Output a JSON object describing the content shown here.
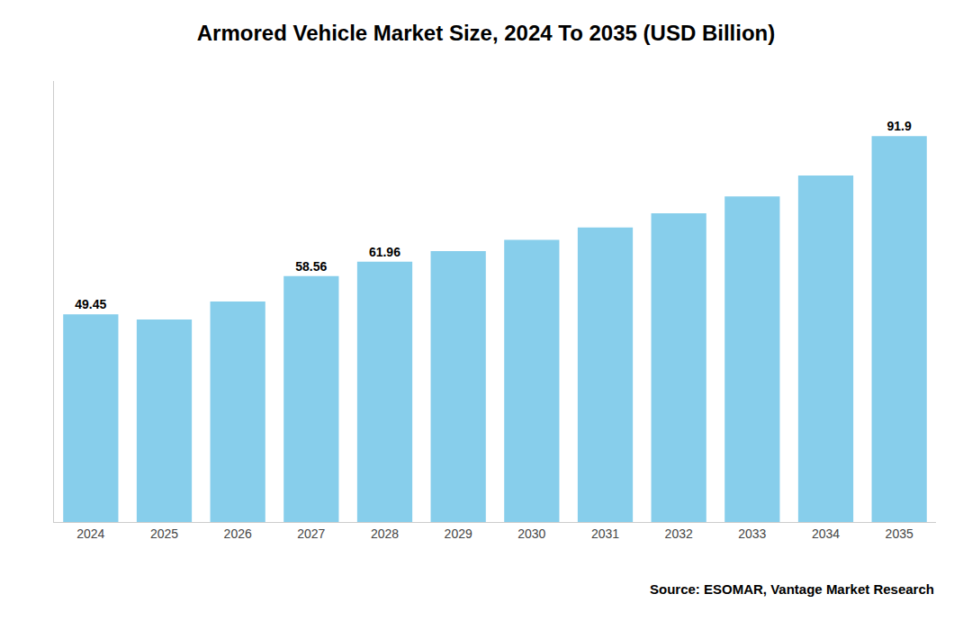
{
  "chart_data": {
    "type": "bar",
    "title": "Armored Vehicle Market Size, 2024 To 2035 (USD Billion)",
    "annotations": [
      "Source: ESOMAR, Vantage Market Research"
    ],
    "categories": [
      "2024",
      "2025",
      "2026",
      "2027",
      "2028",
      "2029",
      "2030",
      "2031",
      "2032",
      "2033",
      "2034",
      "2035"
    ],
    "values": [
      49.45,
      48.2,
      52.5,
      58.56,
      61.96,
      64.5,
      67.2,
      70.1,
      73.5,
      77.5,
      82.5,
      91.9
    ],
    "value_labels": [
      "49.45",
      null,
      null,
      "58.56",
      "61.96",
      null,
      null,
      null,
      null,
      null,
      null,
      "91.9"
    ],
    "color": "#87CEEB",
    "ylim": [
      0,
      105
    ],
    "grid": false,
    "tick_labels": "x"
  }
}
